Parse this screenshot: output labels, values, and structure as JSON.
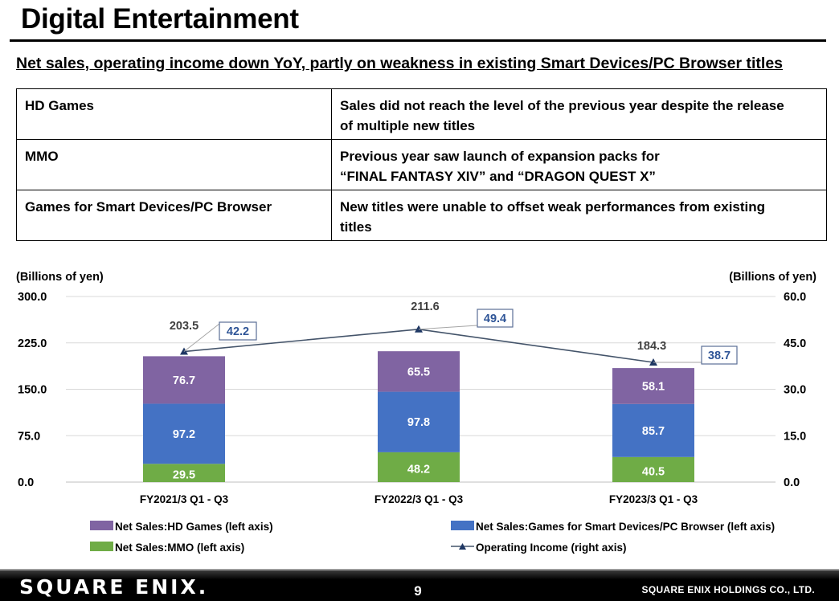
{
  "header": {
    "title": "Digital Entertainment",
    "subtitle": "Net sales, operating income down YoY, partly on weakness in existing Smart Devices/PC Browser titles"
  },
  "table": {
    "rows": [
      {
        "segment": "HD Games",
        "comment_line1": "Sales did not reach the level of the previous year despite the release",
        "comment_line2": "of multiple new titles"
      },
      {
        "segment": "MMO",
        "comment_line1": "Previous year saw launch of expansion packs for",
        "comment_line2": "“FINAL FANTASY XIV” and “DRAGON QUEST X”"
      },
      {
        "segment": "Games for Smart Devices/PC Browser",
        "comment_line1": "New titles were unable to offset weak performances from existing",
        "comment_line2": "titles"
      }
    ]
  },
  "chart_data": {
    "type": "bar",
    "stacked": true,
    "categories": [
      "FY2021/3 Q1 - Q3",
      "FY2022/3 Q1 - Q3",
      "FY2023/3 Q1 - Q3"
    ],
    "left_axis": {
      "label": "(Billions of yen)",
      "range": [
        0,
        300
      ],
      "ticks": [
        "0.0",
        "75.0",
        "150.0",
        "225.0",
        "300.0"
      ],
      "tick_values": [
        0,
        75,
        150,
        225,
        300
      ]
    },
    "right_axis": {
      "label": "(Billions of yen)",
      "range": [
        0,
        60
      ],
      "ticks": [
        "0.0",
        "15.0",
        "30.0",
        "45.0",
        "60.0"
      ],
      "tick_values": [
        0,
        15,
        30,
        45,
        60
      ]
    },
    "grid": true,
    "series": [
      {
        "name": "Net Sales:MMO (left axis)",
        "axis": "left",
        "color": "#6fac46",
        "values": [
          29.5,
          48.2,
          40.5
        ],
        "labels": [
          "29.5",
          "48.2",
          "40.5"
        ]
      },
      {
        "name": "Net Sales:Games for Smart Devices/PC Browser (left axis)",
        "axis": "left",
        "color": "#4472c4",
        "values": [
          97.2,
          97.8,
          85.7
        ],
        "labels": [
          "97.2",
          "97.8",
          "85.7"
        ]
      },
      {
        "name": "Net Sales:HD Games (left axis)",
        "axis": "left",
        "color": "#8064a2",
        "values": [
          76.7,
          65.5,
          58.1
        ],
        "labels": [
          "76.7",
          "65.5",
          "58.1"
        ]
      },
      {
        "name": "Operating Income (right axis)",
        "axis": "right",
        "type": "line",
        "color": "#44546a",
        "values": [
          42.2,
          49.4,
          38.7
        ],
        "labels": [
          "42.2",
          "49.4",
          "38.7"
        ]
      }
    ],
    "totals": [
      203.5,
      211.6,
      184.3
    ],
    "total_labels": [
      "203.5",
      "211.6",
      "184.3"
    ],
    "legend": [
      {
        "name": "Net Sales:HD Games (left axis)",
        "color": "#8064a2",
        "kind": "box"
      },
      {
        "name": "Net Sales:Games for Smart Devices/PC Browser (left axis)",
        "color": "#4472c4",
        "kind": "box"
      },
      {
        "name": "Net Sales:MMO (left axis)",
        "color": "#6fac46",
        "kind": "box"
      },
      {
        "name": "Operating Income (right axis)",
        "color": "#44546a",
        "kind": "line"
      }
    ],
    "legend_position": "bottom"
  },
  "footer": {
    "logo": "SQUARE ENIX.",
    "page_number": "9",
    "company": "SQUARE ENIX HOLDINGS CO., LTD."
  }
}
